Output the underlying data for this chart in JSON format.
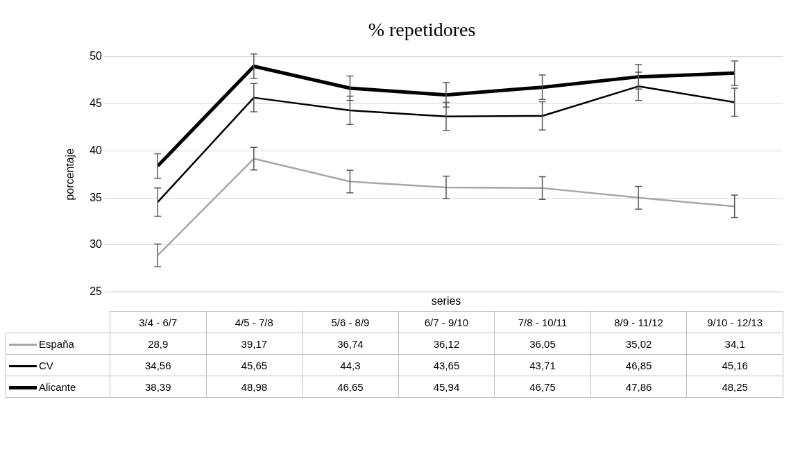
{
  "chart_data": {
    "type": "line",
    "title": "% repetidores",
    "xlabel": "series",
    "ylabel": "porcentaje",
    "categories": [
      "3/4 - 6/7",
      "4/5 - 7/8",
      "5/6 - 8/9",
      "6/7 - 9/10",
      "7/8 - 10/11",
      "8/9 - 11/12",
      "9/10 - 12/13"
    ],
    "series": [
      {
        "name": "España",
        "color": "#a6a6a6",
        "values": [
          28.9,
          39.17,
          36.74,
          36.12,
          36.05,
          35.02,
          34.1
        ],
        "errors": [
          1.2,
          1.2,
          1.2,
          1.2,
          1.2,
          1.2,
          1.2
        ],
        "value_labels": [
          "28,9",
          "39,17",
          "36,74",
          "36,12",
          "36,05",
          "35,02",
          "34,1"
        ]
      },
      {
        "name": "CV",
        "color": "#000000",
        "values": [
          34.56,
          45.65,
          44.3,
          43.65,
          43.71,
          46.85,
          45.16
        ],
        "errors": [
          1.5,
          1.5,
          1.5,
          1.5,
          1.5,
          1.5,
          1.5
        ],
        "value_labels": [
          "34,56",
          "45,65",
          "44,3",
          "43,65",
          "43,71",
          "46,85",
          "45,16"
        ]
      },
      {
        "name": "Alicante",
        "color": "#000000",
        "values": [
          38.39,
          48.98,
          46.65,
          45.94,
          46.75,
          47.86,
          48.25
        ],
        "errors": [
          1.3,
          1.3,
          1.3,
          1.3,
          1.3,
          1.3,
          1.3
        ],
        "value_labels": [
          "38,39",
          "48,98",
          "46,65",
          "45,94",
          "46,75",
          "47,86",
          "48,25"
        ]
      }
    ],
    "ylim": [
      25,
      50
    ],
    "yticks": [
      25,
      30,
      35,
      40,
      45,
      50
    ],
    "grid": "y",
    "legend": "bottom",
    "marker": "none",
    "line_style": "solid"
  }
}
